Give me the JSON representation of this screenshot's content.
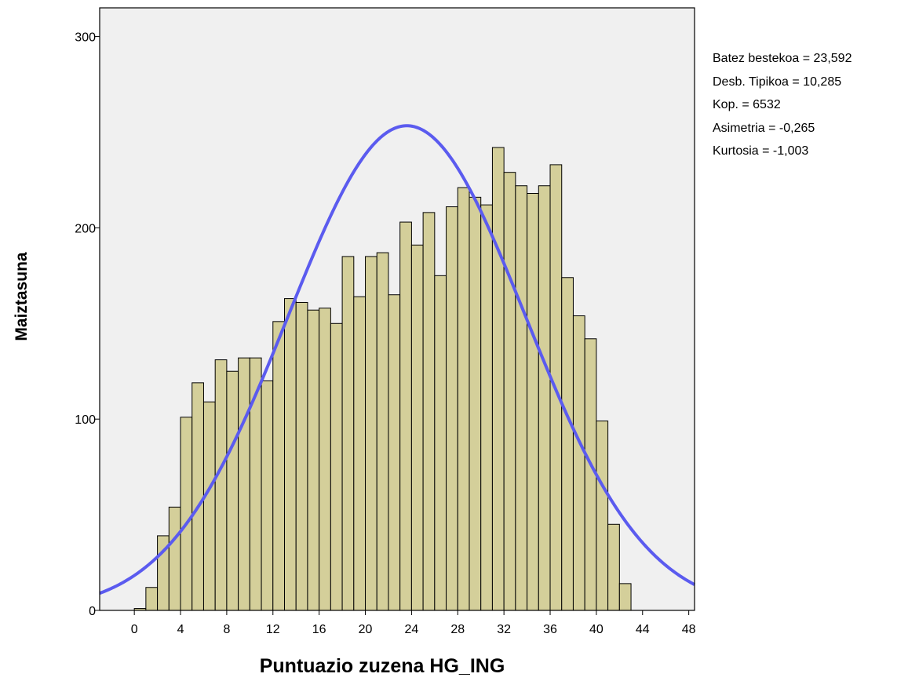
{
  "chart_data": {
    "type": "bar",
    "subtype": "histogram-with-normal-curve",
    "xlabel": "Puntuazio zuzena HG_ING",
    "ylabel": "Maiztasuna",
    "xlim": [
      -3,
      48.5
    ],
    "ylim": [
      0,
      315
    ],
    "x_ticks": [
      0,
      4,
      8,
      12,
      16,
      20,
      24,
      28,
      32,
      36,
      40,
      44,
      48
    ],
    "y_ticks": [
      0,
      100,
      200,
      300
    ],
    "bin_width": 1,
    "bins": [
      0,
      1,
      2,
      3,
      4,
      5,
      6,
      7,
      8,
      9,
      10,
      11,
      12,
      13,
      14,
      15,
      16,
      17,
      18,
      19,
      20,
      21,
      22,
      23,
      24,
      25,
      26,
      27,
      28,
      29,
      30,
      31,
      32,
      33,
      34,
      35,
      36,
      37,
      38,
      39,
      40,
      41,
      42
    ],
    "values": [
      1,
      12,
      39,
      54,
      101,
      119,
      109,
      131,
      125,
      132,
      132,
      120,
      151,
      163,
      161,
      157,
      158,
      150,
      185,
      164,
      185,
      187,
      165,
      203,
      191,
      208,
      175,
      211,
      221,
      216,
      212,
      242,
      229,
      222,
      218,
      222,
      233,
      174,
      154,
      142,
      99,
      45,
      14
    ],
    "normal_curve": {
      "mean": 23.592,
      "std": 10.285,
      "n": 6532
    },
    "colors": {
      "bar_fill": "#d4cf9a",
      "bar_stroke": "#000000",
      "plot_bg": "#f0f0f0",
      "curve": "#5b5bef"
    },
    "grid": false
  },
  "stats": [
    "Batez bestekoa = 23,592",
    "Desb. Tipikoa = 10,285",
    "Kop. = 6532",
    "Asimetria = -0,265",
    "Kurtosia = -1,003"
  ]
}
